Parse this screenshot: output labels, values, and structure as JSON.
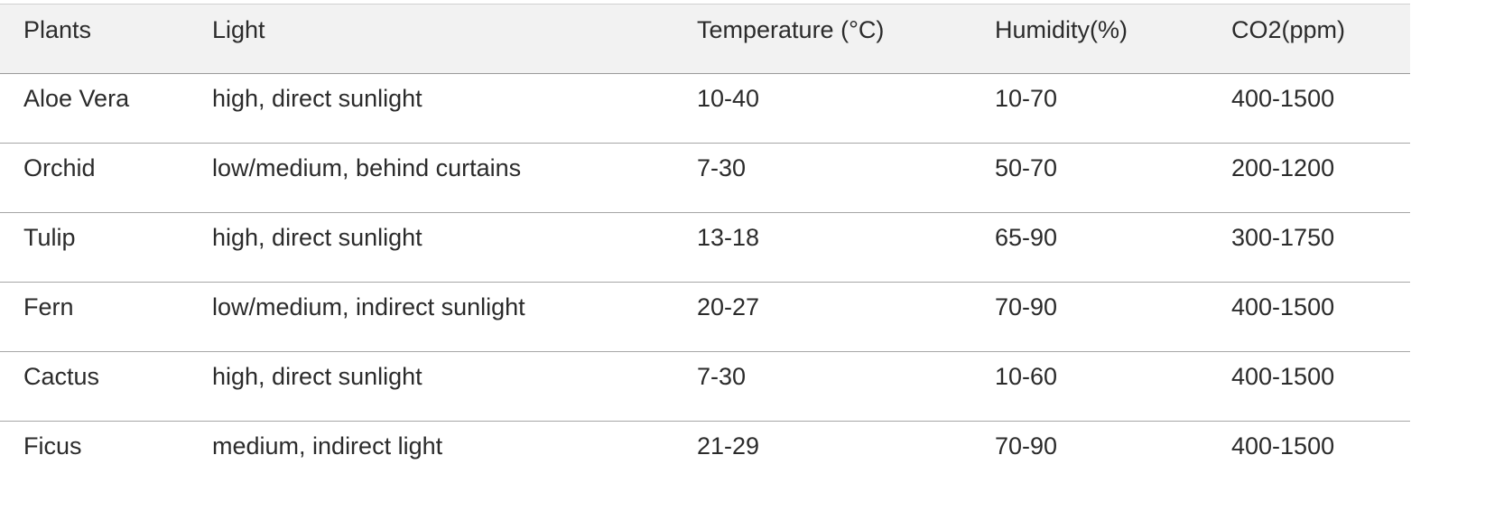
{
  "table": {
    "headers": [
      "Plants",
      "Light",
      "Temperature (°C)",
      "Humidity(%)",
      "CO2(ppm)"
    ],
    "rows": [
      [
        "Aloe Vera",
        "high, direct sunlight",
        "10-40",
        "10-70",
        "400-1500"
      ],
      [
        "Orchid",
        "low/medium, behind curtains",
        "7-30",
        "50-70",
        "200-1200"
      ],
      [
        "Tulip",
        "high, direct sunlight",
        "13-18",
        "65-90",
        "300-1750"
      ],
      [
        "Fern",
        "low/medium, indirect sunlight",
        "20-27",
        "70-90",
        "400-1500"
      ],
      [
        "Cactus",
        "high, direct sunlight",
        "7-30",
        "10-60",
        "400-1500"
      ],
      [
        "Ficus",
        "medium, indirect light",
        "21-29",
        "70-90",
        "400-1500"
      ]
    ]
  }
}
